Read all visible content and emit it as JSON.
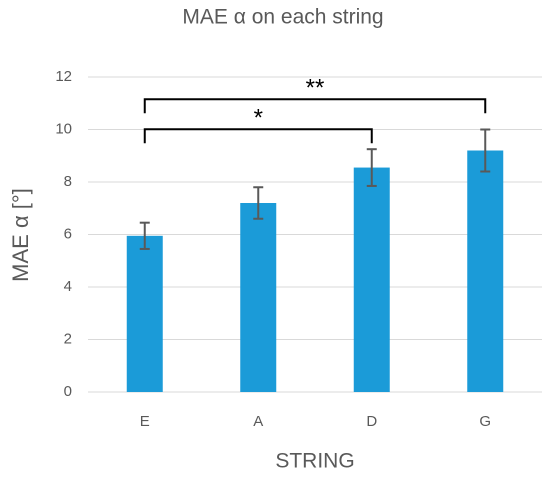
{
  "chart_data": {
    "type": "bar",
    "title": "MAE α on each string",
    "x_label": "STRING",
    "y_label": "MAE α [°]",
    "categories": [
      "E",
      "A",
      "D",
      "G"
    ],
    "values": [
      5.95,
      7.2,
      8.55,
      9.2
    ],
    "errors": [
      0.5,
      0.6,
      0.7,
      0.8
    ],
    "color": "#1b9bd8",
    "ylim": [
      0,
      12
    ],
    "yticks": [
      0,
      2,
      4,
      6,
      8,
      10,
      12
    ],
    "grid": true,
    "significance": [
      {
        "label": "*",
        "from": "E",
        "to": "D"
      },
      {
        "label": "**",
        "from": "E",
        "to": "G"
      }
    ]
  }
}
